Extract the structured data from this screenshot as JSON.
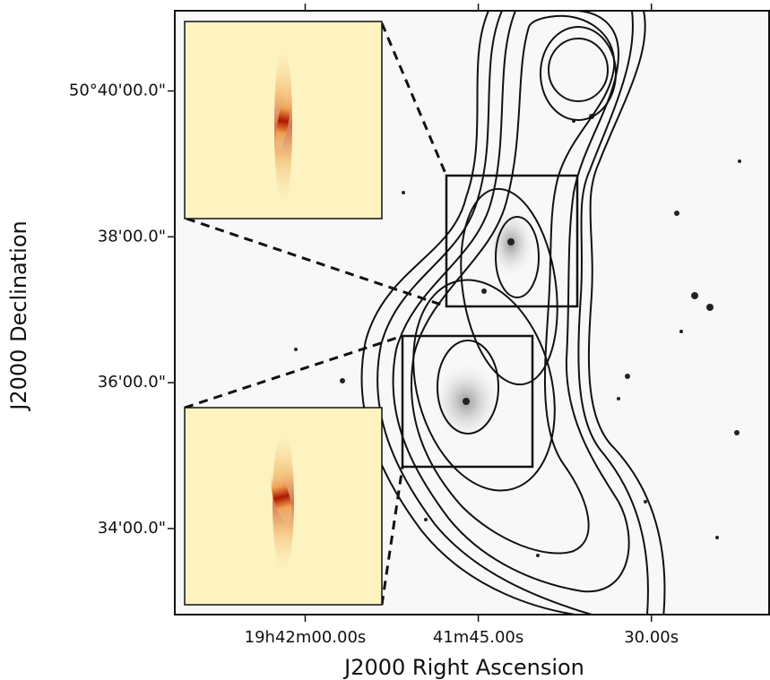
{
  "chart_data": {
    "type": "image",
    "xlabel": "J2000 Right Ascension",
    "ylabel": "J2000 Declination",
    "xlim": [
      71.3,
      19.8
    ],
    "ylim": [
      32.82,
      41.1
    ],
    "xticks": [
      {
        "value": 60,
        "label": "19h42m00.00s"
      },
      {
        "value": 45,
        "label": "41m45.00s"
      },
      {
        "value": 30,
        "label": "30.00s"
      }
    ],
    "yticks": [
      {
        "value": 40,
        "label": "50°40'00.0\""
      },
      {
        "value": 38,
        "label": "38'00.0\""
      },
      {
        "value": 36,
        "label": "36'00.0\""
      },
      {
        "value": 34,
        "label": "34'00.0\""
      }
    ]
  }
}
